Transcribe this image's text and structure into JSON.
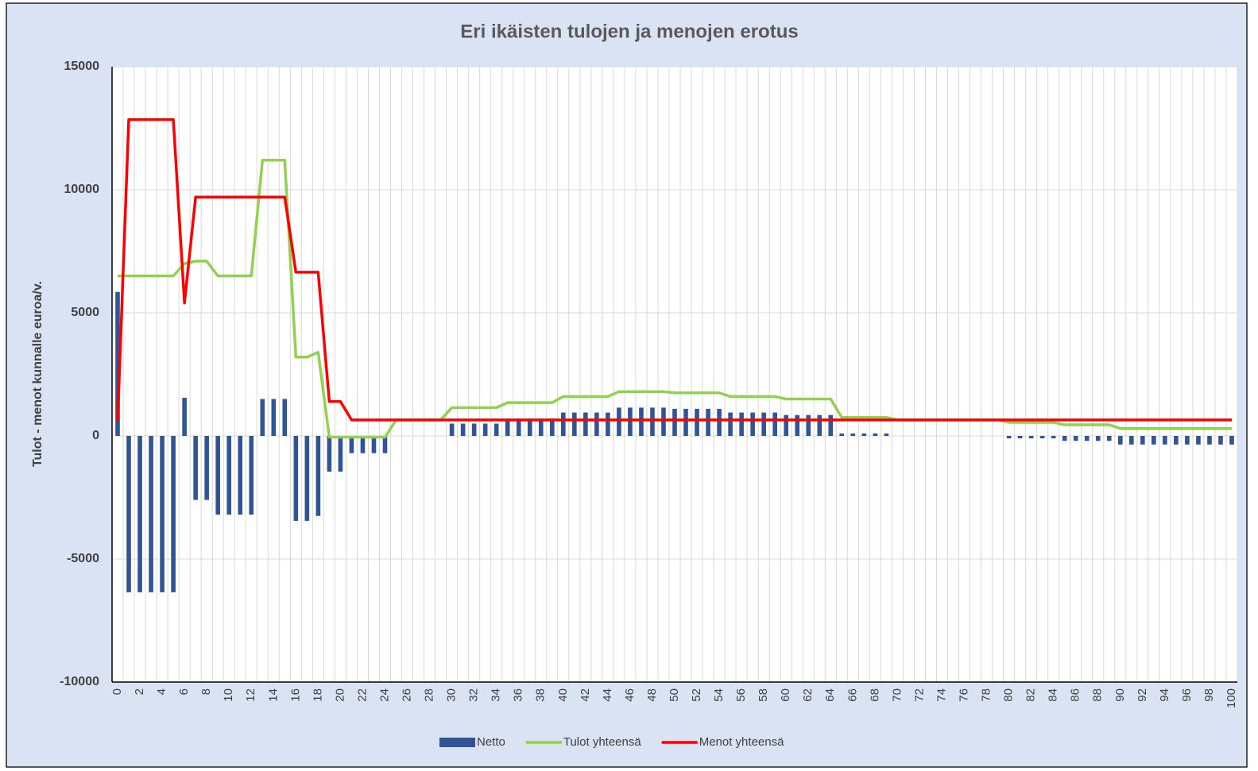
{
  "chart_data": {
    "type": "bar_line",
    "title": "Eri ikäisten tulojen ja menojen erotus",
    "y_label": "Tulot - menot kunnalle euroa/v.",
    "categories": [
      0,
      null,
      2,
      null,
      4,
      null,
      6,
      null,
      8,
      null,
      10,
      null,
      12,
      null,
      14,
      null,
      16,
      null,
      18,
      null,
      20,
      null,
      22,
      null,
      24,
      null,
      26,
      null,
      28,
      null,
      30,
      null,
      32,
      null,
      34,
      null,
      36,
      null,
      38,
      null,
      40,
      null,
      42,
      null,
      44,
      null,
      46,
      null,
      48,
      null,
      50,
      null,
      52,
      null,
      54,
      null,
      56,
      null,
      58,
      null,
      60,
      null,
      62,
      null,
      64,
      null,
      66,
      null,
      68,
      null,
      70,
      null,
      72,
      null,
      74,
      null,
      76,
      null,
      78,
      null,
      80,
      null,
      82,
      null,
      84,
      null,
      86,
      null,
      88,
      null,
      90,
      null,
      92,
      null,
      94,
      null,
      96,
      null,
      98,
      null,
      100
    ],
    "ylim": [
      -10000,
      15000
    ],
    "yticks": [
      -10000,
      -5000,
      0,
      5000,
      10000,
      15000
    ],
    "grid": true,
    "legend": "bottom",
    "series": [
      {
        "name": "Netto",
        "type": "bar",
        "color": "#2f5597",
        "values": [
          5850,
          -6350,
          -6350,
          -6350,
          -6350,
          -6350,
          1550,
          -2600,
          -2600,
          -3200,
          -3200,
          -3200,
          -3200,
          1500,
          1500,
          1500,
          -3450,
          -3450,
          -3250,
          -1450,
          -1450,
          -700,
          -700,
          -700,
          -700,
          0,
          0,
          0,
          0,
          0,
          500,
          500,
          500,
          500,
          500,
          700,
          700,
          700,
          700,
          700,
          950,
          950,
          950,
          950,
          950,
          1150,
          1150,
          1150,
          1150,
          1150,
          1100,
          1100,
          1100,
          1100,
          1100,
          950,
          950,
          950,
          950,
          950,
          850,
          850,
          850,
          850,
          850,
          100,
          100,
          100,
          100,
          100,
          0,
          0,
          0,
          0,
          0,
          0,
          0,
          0,
          0,
          0,
          -100,
          -100,
          -100,
          -100,
          -100,
          -200,
          -200,
          -200,
          -200,
          -200,
          -350,
          -350,
          -350,
          -350,
          -350,
          -350,
          -350,
          -350,
          -350,
          -350,
          -350
        ]
      },
      {
        "name": "Tulot yhteensä",
        "type": "line",
        "color": "#92d050",
        "values": [
          6500,
          6500,
          6500,
          6500,
          6500,
          6500,
          7000,
          7100,
          7100,
          6500,
          6500,
          6500,
          6500,
          11200,
          11200,
          11200,
          3200,
          3200,
          3400,
          -50,
          -50,
          -50,
          -50,
          -50,
          -50,
          650,
          650,
          650,
          650,
          650,
          1150,
          1150,
          1150,
          1150,
          1150,
          1350,
          1350,
          1350,
          1350,
          1350,
          1600,
          1600,
          1600,
          1600,
          1600,
          1800,
          1800,
          1800,
          1800,
          1800,
          1750,
          1750,
          1750,
          1750,
          1750,
          1600,
          1600,
          1600,
          1600,
          1600,
          1500,
          1500,
          1500,
          1500,
          1500,
          750,
          750,
          750,
          750,
          750,
          650,
          650,
          650,
          650,
          650,
          650,
          650,
          650,
          650,
          650,
          550,
          550,
          550,
          550,
          550,
          450,
          450,
          450,
          450,
          450,
          300,
          300,
          300,
          300,
          300,
          300,
          300,
          300,
          300,
          300,
          300
        ]
      },
      {
        "name": "Menot yhteensä",
        "type": "line",
        "color": "#ff0000",
        "values": [
          600,
          12850,
          12850,
          12850,
          12850,
          12850,
          5400,
          9700,
          9700,
          9700,
          9700,
          9700,
          9700,
          9700,
          9700,
          9700,
          6650,
          6650,
          6650,
          1400,
          1400,
          650,
          650,
          650,
          650,
          650,
          650,
          650,
          650,
          650,
          650,
          650,
          650,
          650,
          650,
          650,
          650,
          650,
          650,
          650,
          650,
          650,
          650,
          650,
          650,
          650,
          650,
          650,
          650,
          650,
          650,
          650,
          650,
          650,
          650,
          650,
          650,
          650,
          650,
          650,
          650,
          650,
          650,
          650,
          650,
          650,
          650,
          650,
          650,
          650,
          650,
          650,
          650,
          650,
          650,
          650,
          650,
          650,
          650,
          650,
          650,
          650,
          650,
          650,
          650,
          650,
          650,
          650,
          650,
          650,
          650,
          650,
          650,
          650,
          650,
          650,
          650,
          650,
          650,
          650,
          650
        ]
      }
    ]
  }
}
